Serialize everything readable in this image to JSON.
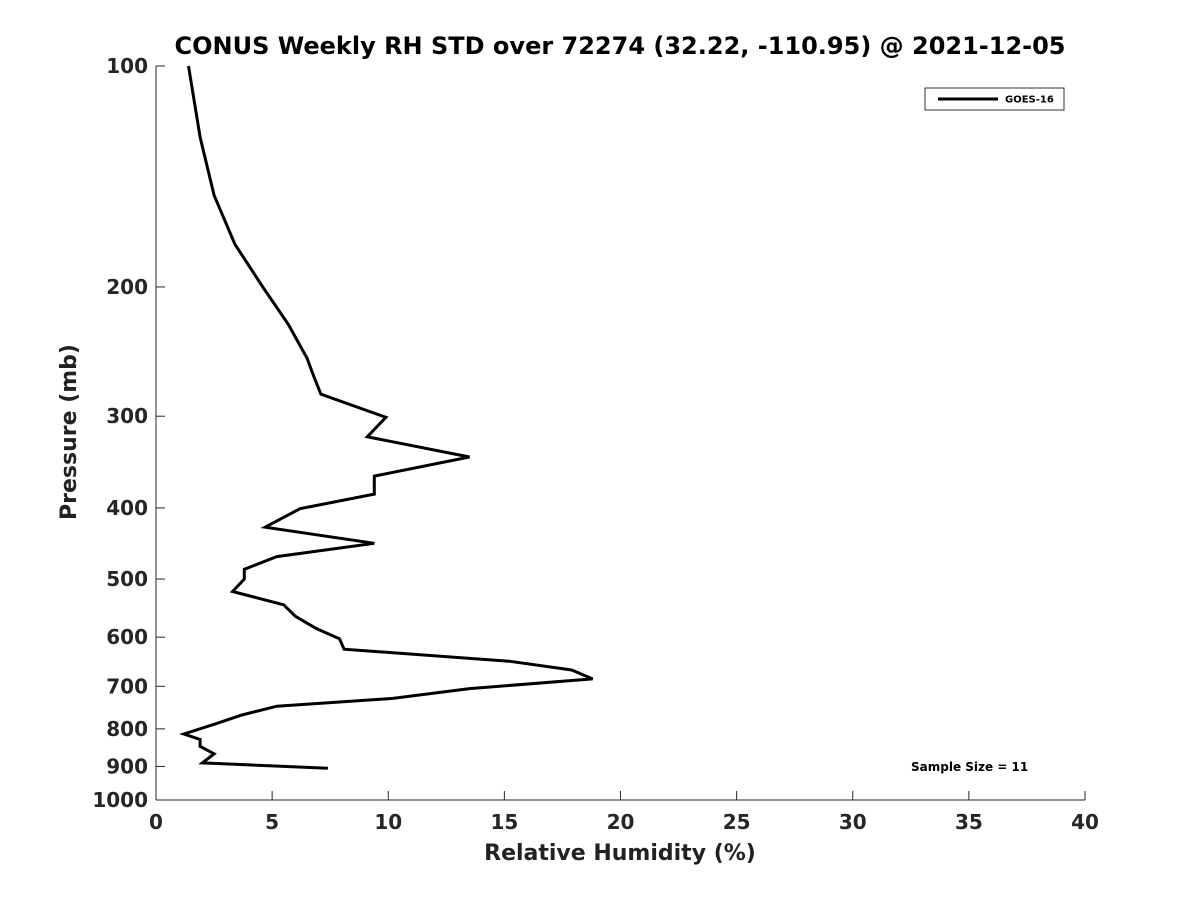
{
  "chart_data": {
    "type": "line",
    "title": "CONUS Weekly RH STD over 72274 (32.22, -110.95) @ 2021-12-05",
    "xlabel": "Relative Humidity (%)",
    "ylabel": "Pressure (mb)",
    "xlim": [
      0,
      40
    ],
    "ylim": [
      100,
      1000
    ],
    "yscale": "log",
    "y_reversed": true,
    "grid": false,
    "xticks": [
      0,
      5,
      10,
      15,
      20,
      25,
      30,
      35,
      40
    ],
    "xtick_labels": [
      "0",
      "5",
      "10",
      "15",
      "20",
      "25",
      "30",
      "35",
      "40"
    ],
    "yticks": [
      100,
      200,
      300,
      400,
      500,
      600,
      700,
      800,
      900,
      1000
    ],
    "ytick_labels": [
      "100",
      "200",
      "300",
      "400",
      "500",
      "600",
      "700",
      "800",
      "900",
      "1000"
    ],
    "legend": {
      "placement": "top-right",
      "entries": [
        "GOES-16"
      ]
    },
    "annotation": "Sample Size = 11",
    "series": [
      {
        "name": "GOES-16",
        "color": "#000000",
        "points": [
          {
            "x": 1.4,
            "p": 100
          },
          {
            "x": 1.9,
            "p": 125
          },
          {
            "x": 2.5,
            "p": 150
          },
          {
            "x": 3.4,
            "p": 175
          },
          {
            "x": 4.6,
            "p": 200
          },
          {
            "x": 5.7,
            "p": 225
          },
          {
            "x": 6.5,
            "p": 250
          },
          {
            "x": 6.8,
            "p": 265
          },
          {
            "x": 7.1,
            "p": 280
          },
          {
            "x": 9.9,
            "p": 301
          },
          {
            "x": 9.1,
            "p": 320
          },
          {
            "x": 13.5,
            "p": 341
          },
          {
            "x": 9.4,
            "p": 362
          },
          {
            "x": 9.4,
            "p": 383
          },
          {
            "x": 6.2,
            "p": 401
          },
          {
            "x": 4.7,
            "p": 425
          },
          {
            "x": 9.4,
            "p": 447
          },
          {
            "x": 5.2,
            "p": 466
          },
          {
            "x": 3.8,
            "p": 485
          },
          {
            "x": 3.8,
            "p": 500
          },
          {
            "x": 3.3,
            "p": 520
          },
          {
            "x": 5.5,
            "p": 542
          },
          {
            "x": 6.0,
            "p": 562
          },
          {
            "x": 6.9,
            "p": 584
          },
          {
            "x": 7.9,
            "p": 603
          },
          {
            "x": 8.1,
            "p": 623
          },
          {
            "x": 15.2,
            "p": 647
          },
          {
            "x": 17.9,
            "p": 665
          },
          {
            "x": 18.8,
            "p": 684
          },
          {
            "x": 13.5,
            "p": 705
          },
          {
            "x": 10.2,
            "p": 727
          },
          {
            "x": 5.2,
            "p": 745
          },
          {
            "x": 3.7,
            "p": 766
          },
          {
            "x": 2.6,
            "p": 787
          },
          {
            "x": 1.2,
            "p": 813
          },
          {
            "x": 1.9,
            "p": 827
          },
          {
            "x": 1.9,
            "p": 845
          },
          {
            "x": 2.5,
            "p": 865
          },
          {
            "x": 2.0,
            "p": 890
          },
          {
            "x": 7.4,
            "p": 905
          }
        ]
      }
    ]
  }
}
